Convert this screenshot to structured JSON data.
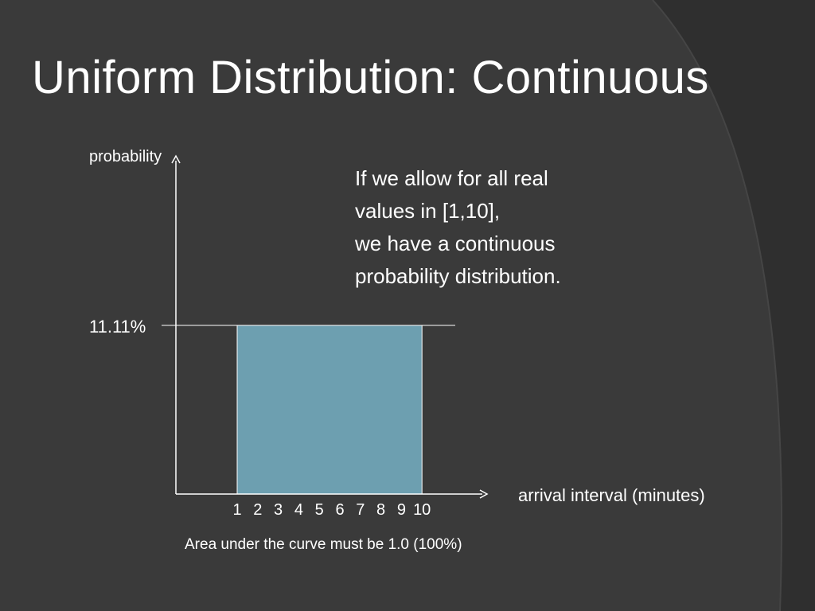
{
  "slide": {
    "title": "Uniform Distribution: Continuous",
    "body_lines": [
      "If we allow for all real",
      "values in [1,10],",
      "we have a continuous",
      "probability distribution."
    ],
    "note": "Area under the curve must be 1.0 (100%)"
  },
  "colors": {
    "background": "#3a3a3a",
    "background_accent": "#2e2e2e",
    "bar_fill": "#6d9fb0",
    "text": "#ffffff"
  },
  "chart_data": {
    "type": "area",
    "xlabel": "arrival interval (minutes)",
    "ylabel": "probability",
    "x_ticks": [
      "1",
      "2",
      "3",
      "4",
      "5",
      "6",
      "7",
      "8",
      "9",
      "10"
    ],
    "y_ticks": [
      "11.11%"
    ],
    "series": [
      {
        "x_start": 1,
        "x_end": 10,
        "y": 11.11
      }
    ],
    "xlim": [
      0,
      10
    ],
    "ylim": [
      0,
      11.11
    ],
    "grid": false
  }
}
